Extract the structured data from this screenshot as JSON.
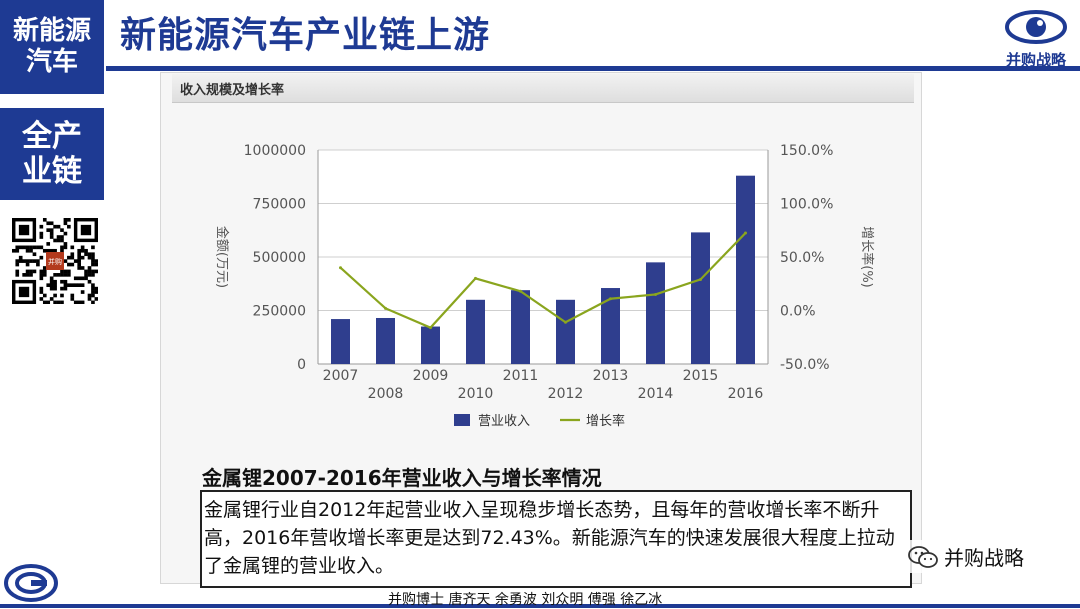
{
  "sidebar": {
    "block1": {
      "line1": "新能源",
      "line2": "汽车"
    },
    "block2": {
      "line1": "全产",
      "line2": "业链"
    },
    "qr_stamp": "并购战略"
  },
  "header": {
    "title": "新能源汽车产业链上游",
    "brand_name": "并购战略"
  },
  "chart_panel": {
    "header_title": "收入规模及增长率"
  },
  "chart_data": {
    "type": "bar+line",
    "title": "收入规模及增长率",
    "categories": [
      "2007",
      "2008",
      "2009",
      "2010",
      "2011",
      "2012",
      "2013",
      "2014",
      "2015",
      "2016"
    ],
    "series": [
      {
        "name": "营业收入",
        "type": "bar",
        "axis": "left",
        "color": "#2f3e8e",
        "values": [
          210000,
          215000,
          175000,
          300000,
          345000,
          300000,
          355000,
          475000,
          615000,
          880000
        ]
      },
      {
        "name": "增长率",
        "type": "line",
        "axis": "right",
        "color": "#8aa51e",
        "values": [
          40.0,
          2.0,
          -16.0,
          30.0,
          18.0,
          -11.0,
          11.0,
          15.0,
          29.0,
          72.43
        ]
      }
    ],
    "ylabel_left": "金额(万元)",
    "ylabel_right": "增长率(%)",
    "ylim_left": [
      0,
      1000000
    ],
    "ylim_right": [
      -50,
      150
    ],
    "yticks_left": [
      "0",
      "250000",
      "500000",
      "750000",
      "1000000"
    ],
    "yticks_right": [
      "-50.0%",
      "0.0%",
      "50.0%",
      "100.0%",
      "150.0%"
    ],
    "grid": true,
    "legend_position": "bottom-center"
  },
  "caption": "金属锂2007-2016年营业收入与增长率情况",
  "description": "金属锂行业自2012年起营业收入呈现稳步增长态势，且每年的营收增长率不断升高，2016年营收增长率更是达到72.43%。新能源汽车的快速发展很大程度上拉动了金属锂的营业收入。",
  "wechat_label": "并购战略",
  "footer": "并购博士 唐齐天 余勇波 刘众明 傅强 徐乙冰",
  "colors": {
    "brand": "#1e3a93",
    "bar": "#2f3e8e",
    "line": "#8aa51e"
  }
}
